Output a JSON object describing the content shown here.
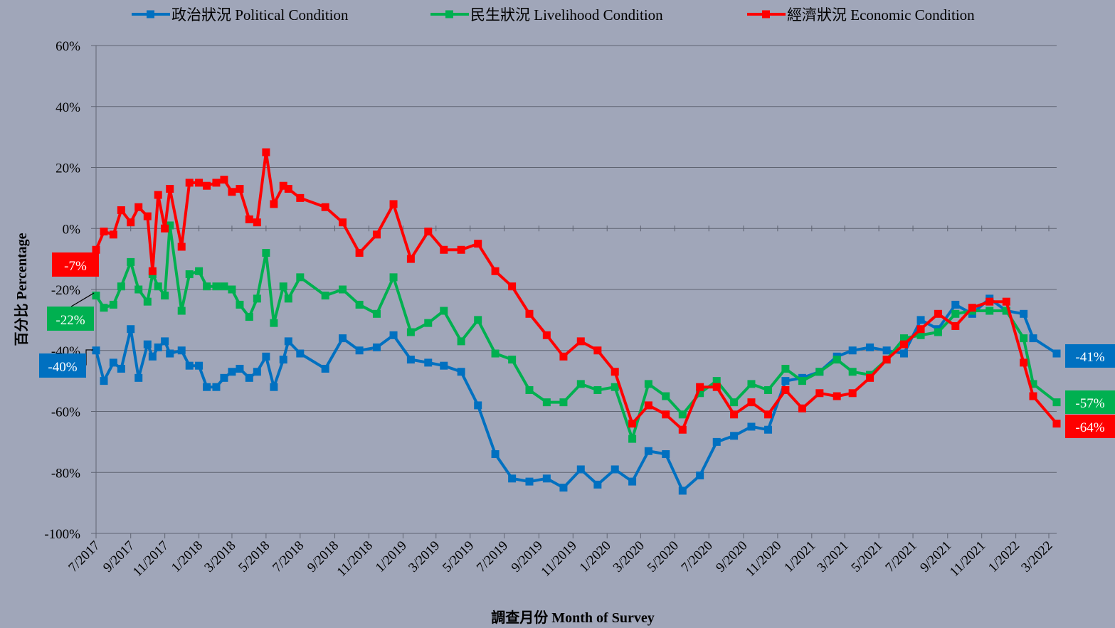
{
  "chart_data": {
    "type": "line",
    "xlabel": "調查月份 Month of Survey",
    "ylabel": "百分比 Percentage",
    "ylim": [
      -100,
      60
    ],
    "y_ticks": [
      "60%",
      "40%",
      "20%",
      "0%",
      "-20%",
      "-40%",
      "-60%",
      "-80%",
      "-100%"
    ],
    "x_tick_labels": [
      "7/2017",
      "9/2017",
      "11/2017",
      "1/2018",
      "3/2018",
      "5/2018",
      "7/2018",
      "9/2018",
      "11/2018",
      "1/2019",
      "3/2019",
      "5/2019",
      "7/2019",
      "9/2019",
      "11/2019",
      "1/2020",
      "3/2020",
      "5/2020",
      "7/2020",
      "9/2020",
      "11/2020",
      "1/2021",
      "3/2021",
      "5/2021",
      "7/2021",
      "9/2021",
      "11/2021",
      "1/2022",
      "3/2022"
    ],
    "grid": true,
    "legend_position": "top",
    "series": [
      {
        "name": "政治狀況 Political Condition",
        "color": "#0070c0",
        "end_label": "-41%",
        "start_label": "-40%",
        "points": [
          [
            "2017-07-01",
            -40
          ],
          [
            "2017-07-15",
            -50
          ],
          [
            "2017-08-01",
            -44
          ],
          [
            "2017-08-15",
            -46
          ],
          [
            "2017-09-01",
            -33
          ],
          [
            "2017-09-15",
            -49
          ],
          [
            "2017-10-01",
            -38
          ],
          [
            "2017-10-10",
            -42
          ],
          [
            "2017-10-20",
            -39
          ],
          [
            "2017-11-01",
            -37
          ],
          [
            "2017-11-10",
            -41
          ],
          [
            "2017-12-01",
            -40
          ],
          [
            "2017-12-15",
            -45
          ],
          [
            "2018-01-01",
            -45
          ],
          [
            "2018-01-15",
            -52
          ],
          [
            "2018-02-01",
            -52
          ],
          [
            "2018-02-15",
            -49
          ],
          [
            "2018-03-01",
            -47
          ],
          [
            "2018-03-15",
            -46
          ],
          [
            "2018-04-01",
            -49
          ],
          [
            "2018-04-15",
            -47
          ],
          [
            "2018-05-01",
            -42
          ],
          [
            "2018-05-15",
            -52
          ],
          [
            "2018-06-01",
            -43
          ],
          [
            "2018-06-10",
            -37
          ],
          [
            "2018-07-01",
            -41
          ],
          [
            "2018-08-15",
            -46
          ],
          [
            "2018-09-15",
            -36
          ],
          [
            "2018-10-15",
            -40
          ],
          [
            "2018-11-15",
            -39
          ],
          [
            "2018-12-15",
            -35
          ],
          [
            "2019-01-15",
            -43
          ],
          [
            "2019-02-15",
            -44
          ],
          [
            "2019-03-15",
            -45
          ],
          [
            "2019-04-15",
            -47
          ],
          [
            "2019-05-15",
            -58
          ],
          [
            "2019-06-15",
            -74
          ],
          [
            "2019-07-15",
            -82
          ],
          [
            "2019-08-15",
            -83
          ],
          [
            "2019-09-15",
            -82
          ],
          [
            "2019-10-15",
            -85
          ],
          [
            "2019-11-15",
            -79
          ],
          [
            "2019-12-15",
            -84
          ],
          [
            "2020-01-15",
            -79
          ],
          [
            "2020-02-15",
            -83
          ],
          [
            "2020-03-15",
            -73
          ],
          [
            "2020-04-15",
            -74
          ],
          [
            "2020-05-15",
            -86
          ],
          [
            "2020-06-15",
            -81
          ],
          [
            "2020-07-15",
            -70
          ],
          [
            "2020-08-15",
            -68
          ],
          [
            "2020-09-15",
            -65
          ],
          [
            "2020-10-15",
            -66
          ],
          [
            "2020-11-15",
            -50
          ],
          [
            "2020-12-15",
            -49
          ],
          [
            "2021-01-15",
            -47
          ],
          [
            "2021-02-15",
            -42
          ],
          [
            "2021-03-15",
            -40
          ],
          [
            "2021-04-15",
            -39
          ],
          [
            "2021-05-15",
            -40
          ],
          [
            "2021-06-15",
            -41
          ],
          [
            "2021-07-15",
            -30
          ],
          [
            "2021-08-15",
            -33
          ],
          [
            "2021-09-15",
            -25
          ],
          [
            "2021-10-15",
            -28
          ],
          [
            "2021-11-15",
            -23
          ],
          [
            "2021-12-15",
            -27
          ],
          [
            "2022-01-15",
            -28
          ],
          [
            "2022-02-01",
            -36
          ],
          [
            "2022-03-15",
            -41
          ]
        ]
      },
      {
        "name": "民生狀況 Livelihood Condition",
        "color": "#00b050",
        "end_label": "-57%",
        "start_label": "-22%",
        "points": [
          [
            "2017-07-01",
            -22
          ],
          [
            "2017-07-15",
            -26
          ],
          [
            "2017-08-01",
            -25
          ],
          [
            "2017-08-15",
            -19
          ],
          [
            "2017-09-01",
            -11
          ],
          [
            "2017-09-15",
            -20
          ],
          [
            "2017-10-01",
            -24
          ],
          [
            "2017-10-10",
            -15
          ],
          [
            "2017-10-20",
            -19
          ],
          [
            "2017-11-01",
            -22
          ],
          [
            "2017-11-10",
            1
          ],
          [
            "2017-12-01",
            -27
          ],
          [
            "2017-12-15",
            -15
          ],
          [
            "2018-01-01",
            -14
          ],
          [
            "2018-01-15",
            -19
          ],
          [
            "2018-02-01",
            -19
          ],
          [
            "2018-02-15",
            -19
          ],
          [
            "2018-03-01",
            -20
          ],
          [
            "2018-03-15",
            -25
          ],
          [
            "2018-04-01",
            -29
          ],
          [
            "2018-04-15",
            -23
          ],
          [
            "2018-05-01",
            -8
          ],
          [
            "2018-05-15",
            -31
          ],
          [
            "2018-06-01",
            -19
          ],
          [
            "2018-06-10",
            -23
          ],
          [
            "2018-07-01",
            -16
          ],
          [
            "2018-08-15",
            -22
          ],
          [
            "2018-09-15",
            -20
          ],
          [
            "2018-10-15",
            -25
          ],
          [
            "2018-11-15",
            -28
          ],
          [
            "2018-12-15",
            -16
          ],
          [
            "2019-01-15",
            -34
          ],
          [
            "2019-02-15",
            -31
          ],
          [
            "2019-03-15",
            -27
          ],
          [
            "2019-04-15",
            -37
          ],
          [
            "2019-05-15",
            -30
          ],
          [
            "2019-06-15",
            -41
          ],
          [
            "2019-07-15",
            -43
          ],
          [
            "2019-08-15",
            -53
          ],
          [
            "2019-09-15",
            -57
          ],
          [
            "2019-10-15",
            -57
          ],
          [
            "2019-11-15",
            -51
          ],
          [
            "2019-12-15",
            -53
          ],
          [
            "2020-01-15",
            -52
          ],
          [
            "2020-02-15",
            -69
          ],
          [
            "2020-03-15",
            -51
          ],
          [
            "2020-04-15",
            -55
          ],
          [
            "2020-05-15",
            -61
          ],
          [
            "2020-06-15",
            -54
          ],
          [
            "2020-07-15",
            -50
          ],
          [
            "2020-08-15",
            -57
          ],
          [
            "2020-09-15",
            -51
          ],
          [
            "2020-10-15",
            -53
          ],
          [
            "2020-11-15",
            -46
          ],
          [
            "2020-12-15",
            -50
          ],
          [
            "2021-01-15",
            -47
          ],
          [
            "2021-02-15",
            -43
          ],
          [
            "2021-03-15",
            -47
          ],
          [
            "2021-04-15",
            -48
          ],
          [
            "2021-05-15",
            -43
          ],
          [
            "2021-06-15",
            -36
          ],
          [
            "2021-07-15",
            -35
          ],
          [
            "2021-08-15",
            -34
          ],
          [
            "2021-09-15",
            -28
          ],
          [
            "2021-10-15",
            -27
          ],
          [
            "2021-11-15",
            -27
          ],
          [
            "2021-12-15",
            -27
          ],
          [
            "2022-01-15",
            -36
          ],
          [
            "2022-02-01",
            -51
          ],
          [
            "2022-03-15",
            -57
          ]
        ]
      },
      {
        "name": "經濟狀況 Economic Condition",
        "color": "#ff0000",
        "end_label": "-64%",
        "start_label": "-7%",
        "points": [
          [
            "2017-07-01",
            -7
          ],
          [
            "2017-07-15",
            -1
          ],
          [
            "2017-08-01",
            -2
          ],
          [
            "2017-08-15",
            6
          ],
          [
            "2017-09-01",
            2
          ],
          [
            "2017-09-15",
            7
          ],
          [
            "2017-10-01",
            4
          ],
          [
            "2017-10-10",
            -14
          ],
          [
            "2017-10-20",
            11
          ],
          [
            "2017-11-01",
            0
          ],
          [
            "2017-11-10",
            13
          ],
          [
            "2017-12-01",
            -6
          ],
          [
            "2017-12-15",
            15
          ],
          [
            "2018-01-01",
            15
          ],
          [
            "2018-01-15",
            14
          ],
          [
            "2018-02-01",
            15
          ],
          [
            "2018-02-15",
            16
          ],
          [
            "2018-03-01",
            12
          ],
          [
            "2018-03-15",
            13
          ],
          [
            "2018-04-01",
            3
          ],
          [
            "2018-04-15",
            2
          ],
          [
            "2018-05-01",
            25
          ],
          [
            "2018-05-15",
            8
          ],
          [
            "2018-06-01",
            14
          ],
          [
            "2018-06-10",
            13
          ],
          [
            "2018-07-01",
            10
          ],
          [
            "2018-08-15",
            7
          ],
          [
            "2018-09-15",
            2
          ],
          [
            "2018-10-15",
            -8
          ],
          [
            "2018-11-15",
            -2
          ],
          [
            "2018-12-15",
            8
          ],
          [
            "2019-01-15",
            -10
          ],
          [
            "2019-02-15",
            -1
          ],
          [
            "2019-03-15",
            -7
          ],
          [
            "2019-04-15",
            -7
          ],
          [
            "2019-05-15",
            -5
          ],
          [
            "2019-06-15",
            -14
          ],
          [
            "2019-07-15",
            -19
          ],
          [
            "2019-08-15",
            -28
          ],
          [
            "2019-09-15",
            -35
          ],
          [
            "2019-10-15",
            -42
          ],
          [
            "2019-11-15",
            -37
          ],
          [
            "2019-12-15",
            -40
          ],
          [
            "2020-01-15",
            -47
          ],
          [
            "2020-02-15",
            -64
          ],
          [
            "2020-03-15",
            -58
          ],
          [
            "2020-04-15",
            -61
          ],
          [
            "2020-05-15",
            -66
          ],
          [
            "2020-06-15",
            -52
          ],
          [
            "2020-07-15",
            -52
          ],
          [
            "2020-08-15",
            -61
          ],
          [
            "2020-09-15",
            -57
          ],
          [
            "2020-10-15",
            -61
          ],
          [
            "2020-11-15",
            -53
          ],
          [
            "2020-12-15",
            -59
          ],
          [
            "2021-01-15",
            -54
          ],
          [
            "2021-02-15",
            -55
          ],
          [
            "2021-03-15",
            -54
          ],
          [
            "2021-04-15",
            -49
          ],
          [
            "2021-05-15",
            -43
          ],
          [
            "2021-06-15",
            -38
          ],
          [
            "2021-07-15",
            -33
          ],
          [
            "2021-08-15",
            -28
          ],
          [
            "2021-09-15",
            -32
          ],
          [
            "2021-10-15",
            -26
          ],
          [
            "2021-11-15",
            -24
          ],
          [
            "2021-12-15",
            -24
          ],
          [
            "2022-01-15",
            -44
          ],
          [
            "2022-02-01",
            -55
          ],
          [
            "2022-03-15",
            -64
          ]
        ]
      }
    ]
  }
}
